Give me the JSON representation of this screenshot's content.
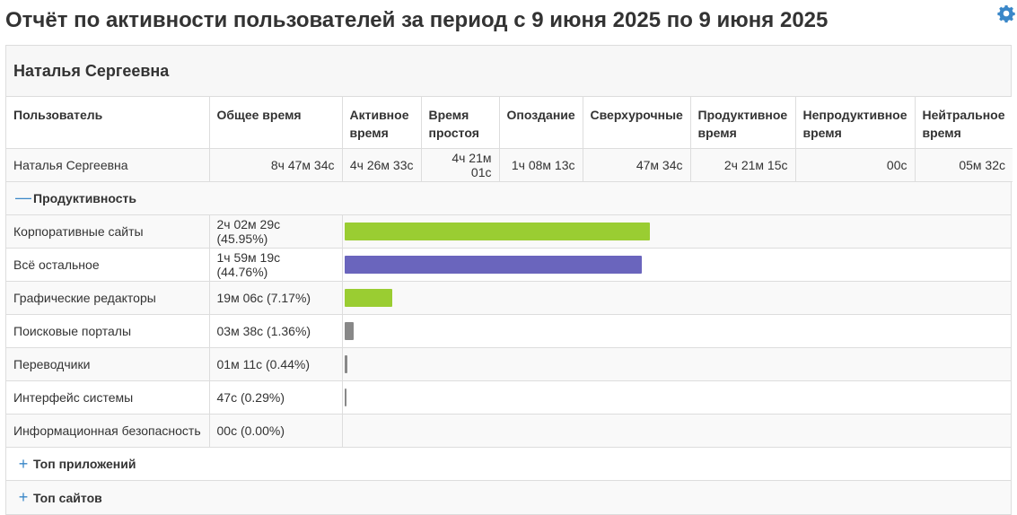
{
  "title": "Отчёт по активности пользователей за период с 9 июня 2025 по 9 июня 2025",
  "user_name": "Наталья Сергеевна",
  "summary": {
    "headers": [
      "Пользователь",
      "Общее время",
      "Активное время",
      "Время простоя",
      "Опоздание",
      "Сверхурочные",
      "Продуктивное время",
      "Непродуктивное время",
      "Нейтральное время"
    ],
    "row": [
      "Наталья Сергеевна",
      "8ч 47м 34с",
      "4ч 26м 33с",
      "4ч 21м 01с",
      "1ч 08м 13с",
      "47м 34с",
      "2ч 21м 15с",
      "00с",
      "05м 32с"
    ]
  },
  "productivity": {
    "label": "Продуктивность",
    "toggle": "—",
    "rows": [
      {
        "name": "Корпоративные сайты",
        "time": "2ч 02м 29с (45.95%)",
        "percent": 45.95,
        "color": "#9acd32"
      },
      {
        "name": "Всё остальное",
        "time": "1ч 59м 19с (44.76%)",
        "percent": 44.76,
        "color": "#6a65bd"
      },
      {
        "name": "Графические редакторы",
        "time": "19м 06с (7.17%)",
        "percent": 7.17,
        "color": "#9acd32"
      },
      {
        "name": "Поисковые порталы",
        "time": "03м 38с (1.36%)",
        "percent": 1.36,
        "color": "#888888"
      },
      {
        "name": "Переводчики",
        "time": "01м 11с (0.44%)",
        "percent": 0.44,
        "color": "#888888"
      },
      {
        "name": "Интерфейс системы",
        "time": "47с (0.29%)",
        "percent": 0.29,
        "color": "#888888"
      },
      {
        "name": "Информационная безопасность",
        "time": "00с (0.00%)",
        "percent": 0.0,
        "color": "#888888"
      }
    ]
  },
  "top_apps": {
    "label": "Топ приложений",
    "toggle": "+"
  },
  "top_sites": {
    "label": "Топ сайтов",
    "toggle": "+"
  },
  "icons": {
    "settings": "gear-icon"
  }
}
